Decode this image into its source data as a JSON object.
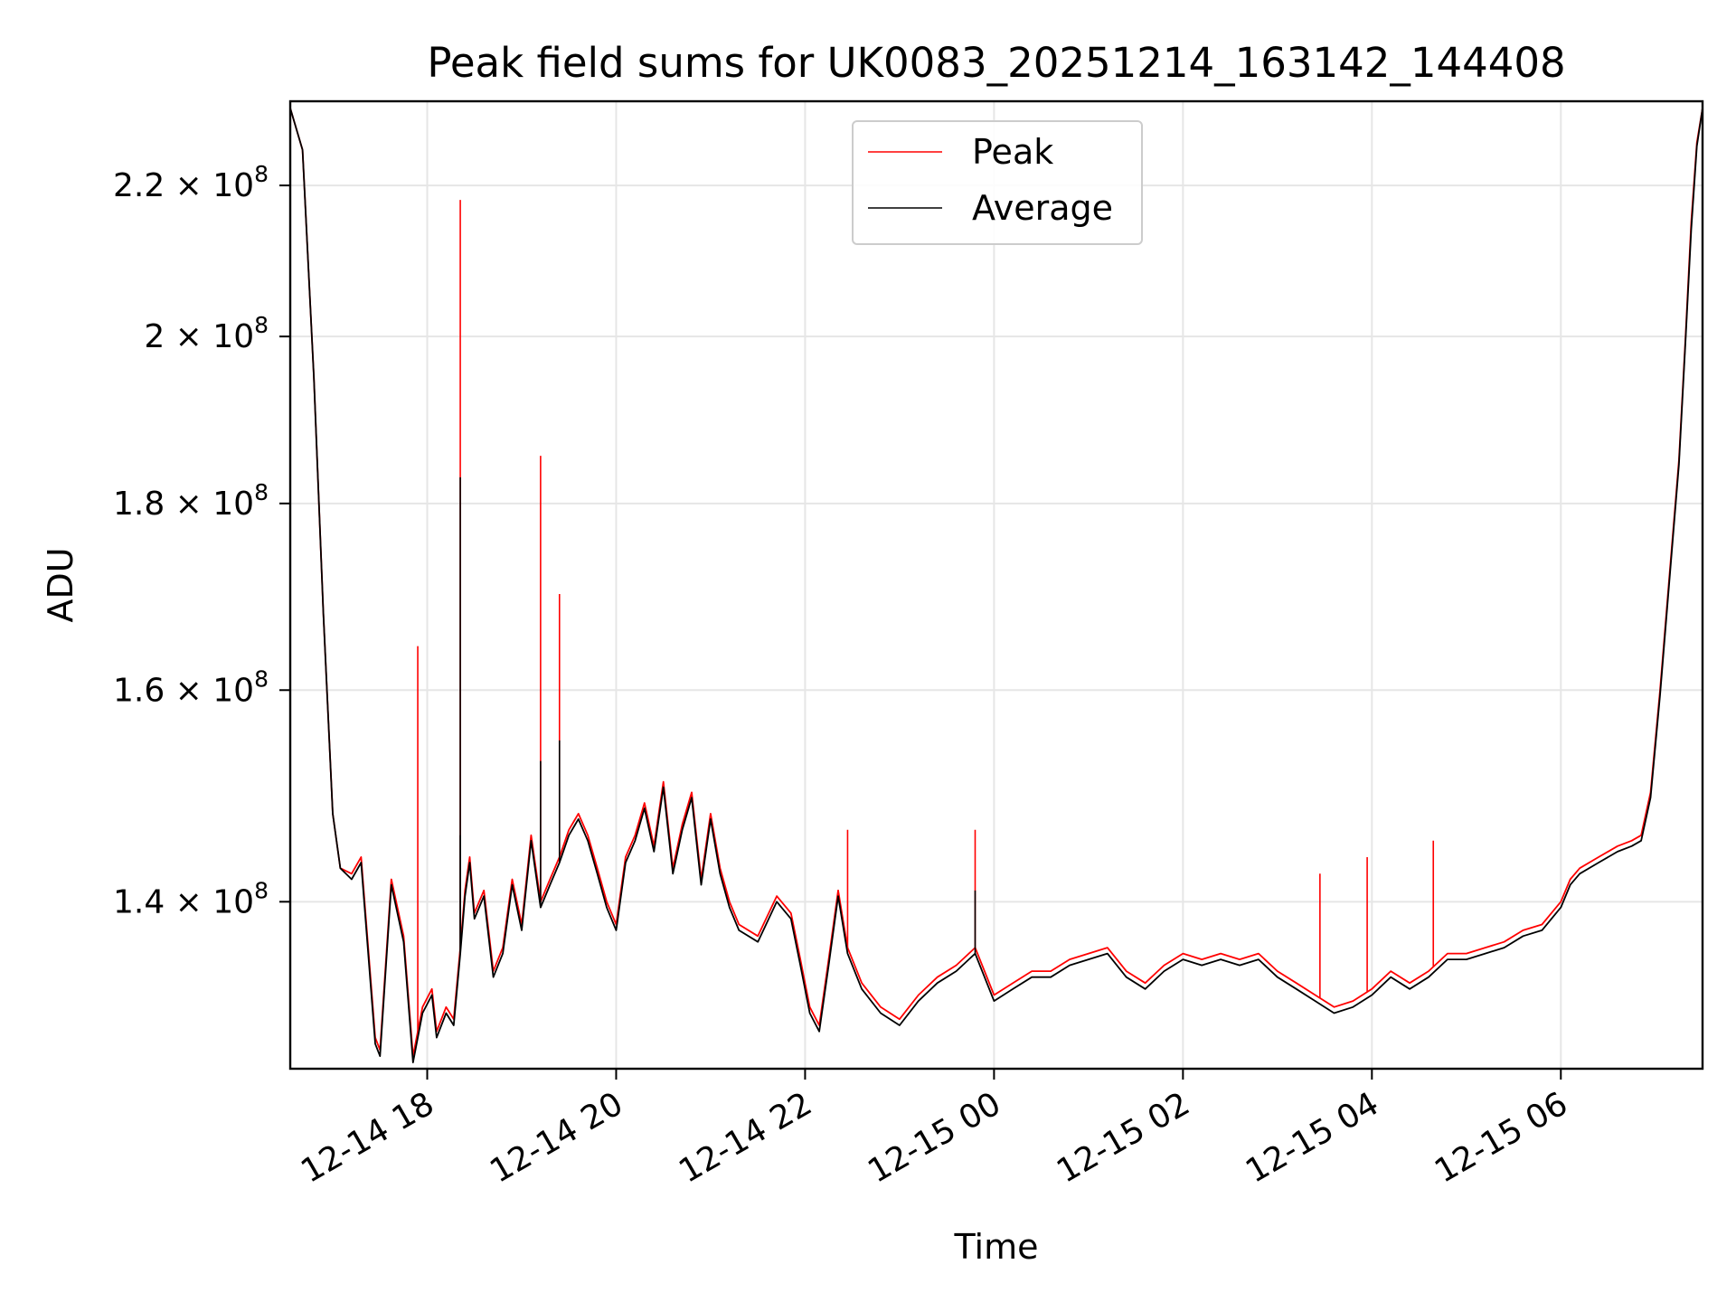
{
  "chart_data": {
    "type": "line",
    "title": "Peak field sums for UK0083_20251214_163142_144408",
    "xlabel": "Time",
    "ylabel": "ADU",
    "yscale": "log",
    "grid": true,
    "legend_position": "upper-center",
    "x_unit": "hours since 12-14 00:00",
    "xlim": [
      16.55,
      31.5
    ],
    "ylim": [
      126000000,
      232000000
    ],
    "x_ticks": [
      {
        "value": 18,
        "label": "12-14 18"
      },
      {
        "value": 20,
        "label": "12-14 20"
      },
      {
        "value": 22,
        "label": "12-14 22"
      },
      {
        "value": 24,
        "label": "12-15 00"
      },
      {
        "value": 26,
        "label": "12-15 02"
      },
      {
        "value": 28,
        "label": "12-15 04"
      },
      {
        "value": 30,
        "label": "12-15 06"
      }
    ],
    "y_ticks": [
      {
        "value": 140000000,
        "mantissa": "1.4",
        "exp": "8"
      },
      {
        "value": 160000000,
        "mantissa": "1.6",
        "exp": "8"
      },
      {
        "value": 180000000,
        "mantissa": "1.8",
        "exp": "8"
      },
      {
        "value": 200000000,
        "mantissa": "2",
        "exp": "8"
      },
      {
        "value": 220000000,
        "mantissa": "2.2",
        "exp": "8"
      }
    ],
    "times_label": "×",
    "tick_base": "10",
    "series": [
      {
        "name": "Peak",
        "color": "#ff0000",
        "points": [
          [
            16.55,
            231000000
          ],
          [
            16.68,
            225000000
          ],
          [
            16.8,
            195000000
          ],
          [
            16.9,
            168000000
          ],
          [
            17.0,
            148000000
          ],
          [
            17.08,
            143000000
          ],
          [
            17.2,
            142500000
          ],
          [
            17.3,
            144000000
          ],
          [
            17.45,
            128500000
          ],
          [
            17.5,
            127500000
          ],
          [
            17.62,
            142000000
          ],
          [
            17.75,
            137000000
          ],
          [
            17.85,
            127000000
          ],
          [
            17.95,
            131000000
          ],
          [
            18.05,
            132500000
          ],
          [
            18.1,
            129000000
          ],
          [
            18.2,
            131000000
          ],
          [
            18.28,
            130000000
          ],
          [
            18.35,
            136000000
          ],
          [
            18.4,
            141000000
          ],
          [
            18.45,
            144000000
          ],
          [
            18.5,
            139000000
          ],
          [
            18.6,
            141000000
          ],
          [
            18.7,
            134000000
          ],
          [
            18.8,
            136000000
          ],
          [
            18.9,
            142000000
          ],
          [
            19.0,
            138000000
          ],
          [
            19.1,
            146000000
          ],
          [
            19.2,
            140000000
          ],
          [
            19.3,
            142000000
          ],
          [
            19.4,
            144000000
          ],
          [
            19.5,
            146500000
          ],
          [
            19.6,
            148000000
          ],
          [
            19.7,
            146000000
          ],
          [
            19.8,
            143000000
          ],
          [
            19.9,
            140000000
          ],
          [
            20.0,
            138000000
          ],
          [
            20.1,
            144000000
          ],
          [
            20.2,
            146000000
          ],
          [
            20.3,
            149000000
          ],
          [
            20.4,
            145000000
          ],
          [
            20.5,
            151000000
          ],
          [
            20.6,
            143000000
          ],
          [
            20.7,
            147000000
          ],
          [
            20.8,
            150000000
          ],
          [
            20.9,
            142000000
          ],
          [
            21.0,
            148000000
          ],
          [
            21.1,
            143000000
          ],
          [
            21.2,
            140000000
          ],
          [
            21.3,
            138000000
          ],
          [
            21.5,
            137000000
          ],
          [
            21.7,
            140500000
          ],
          [
            21.85,
            139000000
          ],
          [
            21.95,
            135000000
          ],
          [
            22.05,
            131000000
          ],
          [
            22.15,
            129500000
          ],
          [
            22.25,
            135000000
          ],
          [
            22.35,
            141000000
          ],
          [
            22.45,
            136000000
          ],
          [
            22.6,
            133000000
          ],
          [
            22.8,
            131000000
          ],
          [
            23.0,
            130000000
          ],
          [
            23.2,
            132000000
          ],
          [
            23.4,
            133500000
          ],
          [
            23.6,
            134500000
          ],
          [
            23.8,
            136000000
          ],
          [
            24.0,
            132000000
          ],
          [
            24.2,
            133000000
          ],
          [
            24.4,
            134000000
          ],
          [
            24.6,
            134000000
          ],
          [
            24.8,
            135000000
          ],
          [
            25.0,
            135500000
          ],
          [
            25.2,
            136000000
          ],
          [
            25.4,
            134000000
          ],
          [
            25.6,
            133000000
          ],
          [
            25.8,
            134500000
          ],
          [
            26.0,
            135500000
          ],
          [
            26.2,
            135000000
          ],
          [
            26.4,
            135500000
          ],
          [
            26.6,
            135000000
          ],
          [
            26.8,
            135500000
          ],
          [
            27.0,
            134000000
          ],
          [
            27.2,
            133000000
          ],
          [
            27.4,
            132000000
          ],
          [
            27.6,
            131000000
          ],
          [
            27.8,
            131500000
          ],
          [
            28.0,
            132500000
          ],
          [
            28.2,
            134000000
          ],
          [
            28.4,
            133000000
          ],
          [
            28.6,
            134000000
          ],
          [
            28.8,
            135500000
          ],
          [
            29.0,
            135500000
          ],
          [
            29.2,
            136000000
          ],
          [
            29.4,
            136500000
          ],
          [
            29.6,
            137500000
          ],
          [
            29.8,
            138000000
          ],
          [
            30.0,
            140000000
          ],
          [
            30.1,
            142000000
          ],
          [
            30.2,
            143000000
          ],
          [
            30.4,
            144000000
          ],
          [
            30.6,
            145000000
          ],
          [
            30.75,
            145500000
          ],
          [
            30.85,
            146000000
          ],
          [
            30.95,
            150000000
          ],
          [
            31.05,
            160000000
          ],
          [
            31.15,
            172000000
          ],
          [
            31.25,
            185000000
          ],
          [
            31.32,
            200000000
          ],
          [
            31.38,
            215000000
          ],
          [
            31.44,
            226000000
          ],
          [
            31.5,
            231000000
          ]
        ],
        "spikes": [
          [
            17.9,
            164500000
          ],
          [
            18.35,
            218000000
          ],
          [
            19.2,
            185500000
          ],
          [
            19.4,
            170000000
          ],
          [
            22.45,
            146500000
          ],
          [
            23.8,
            146500000
          ],
          [
            27.45,
            142500000
          ],
          [
            27.95,
            144000000
          ],
          [
            28.65,
            145500000
          ]
        ]
      },
      {
        "name": "Average",
        "color": "#000000",
        "points": [
          [
            16.55,
            231000000
          ],
          [
            16.68,
            225000000
          ],
          [
            16.8,
            195000000
          ],
          [
            16.9,
            168000000
          ],
          [
            17.0,
            148000000
          ],
          [
            17.08,
            143000000
          ],
          [
            17.2,
            142000000
          ],
          [
            17.3,
            143500000
          ],
          [
            17.45,
            128000000
          ],
          [
            17.5,
            127000000
          ],
          [
            17.62,
            141500000
          ],
          [
            17.75,
            136500000
          ],
          [
            17.85,
            126500000
          ],
          [
            17.95,
            130500000
          ],
          [
            18.05,
            132000000
          ],
          [
            18.1,
            128500000
          ],
          [
            18.2,
            130500000
          ],
          [
            18.28,
            129500000
          ],
          [
            18.35,
            135500000
          ],
          [
            18.4,
            140500000
          ],
          [
            18.45,
            143500000
          ],
          [
            18.5,
            138500000
          ],
          [
            18.6,
            140500000
          ],
          [
            18.7,
            133500000
          ],
          [
            18.8,
            135500000
          ],
          [
            18.9,
            141500000
          ],
          [
            19.0,
            137500000
          ],
          [
            19.1,
            145500000
          ],
          [
            19.2,
            139500000
          ],
          [
            19.3,
            141500000
          ],
          [
            19.4,
            143500000
          ],
          [
            19.5,
            146000000
          ],
          [
            19.6,
            147500000
          ],
          [
            19.7,
            145500000
          ],
          [
            19.8,
            142500000
          ],
          [
            19.9,
            139500000
          ],
          [
            20.0,
            137500000
          ],
          [
            20.1,
            143500000
          ],
          [
            20.2,
            145500000
          ],
          [
            20.3,
            148500000
          ],
          [
            20.4,
            144500000
          ],
          [
            20.5,
            150500000
          ],
          [
            20.6,
            142500000
          ],
          [
            20.7,
            146500000
          ],
          [
            20.8,
            149500000
          ],
          [
            20.9,
            141500000
          ],
          [
            21.0,
            147500000
          ],
          [
            21.1,
            142500000
          ],
          [
            21.2,
            139500000
          ],
          [
            21.3,
            137500000
          ],
          [
            21.5,
            136500000
          ],
          [
            21.7,
            140000000
          ],
          [
            21.85,
            138500000
          ],
          [
            21.95,
            134500000
          ],
          [
            22.05,
            130500000
          ],
          [
            22.15,
            129000000
          ],
          [
            22.25,
            134500000
          ],
          [
            22.35,
            140500000
          ],
          [
            22.45,
            135500000
          ],
          [
            22.6,
            132500000
          ],
          [
            22.8,
            130500000
          ],
          [
            23.0,
            129500000
          ],
          [
            23.2,
            131500000
          ],
          [
            23.4,
            133000000
          ],
          [
            23.6,
            134000000
          ],
          [
            23.8,
            135500000
          ],
          [
            24.0,
            131500000
          ],
          [
            24.2,
            132500000
          ],
          [
            24.4,
            133500000
          ],
          [
            24.6,
            133500000
          ],
          [
            24.8,
            134500000
          ],
          [
            25.0,
            135000000
          ],
          [
            25.2,
            135500000
          ],
          [
            25.4,
            133500000
          ],
          [
            25.6,
            132500000
          ],
          [
            25.8,
            134000000
          ],
          [
            26.0,
            135000000
          ],
          [
            26.2,
            134500000
          ],
          [
            26.4,
            135000000
          ],
          [
            26.6,
            134500000
          ],
          [
            26.8,
            135000000
          ],
          [
            27.0,
            133500000
          ],
          [
            27.2,
            132500000
          ],
          [
            27.4,
            131500000
          ],
          [
            27.6,
            130500000
          ],
          [
            27.8,
            131000000
          ],
          [
            28.0,
            132000000
          ],
          [
            28.2,
            133500000
          ],
          [
            28.4,
            132500000
          ],
          [
            28.6,
            133500000
          ],
          [
            28.8,
            135000000
          ],
          [
            29.0,
            135000000
          ],
          [
            29.2,
            135500000
          ],
          [
            29.4,
            136000000
          ],
          [
            29.6,
            137000000
          ],
          [
            29.8,
            137500000
          ],
          [
            30.0,
            139500000
          ],
          [
            30.1,
            141500000
          ],
          [
            30.2,
            142500000
          ],
          [
            30.4,
            143500000
          ],
          [
            30.6,
            144500000
          ],
          [
            30.75,
            145000000
          ],
          [
            30.85,
            145500000
          ],
          [
            30.95,
            149500000
          ],
          [
            31.05,
            159500000
          ],
          [
            31.15,
            171500000
          ],
          [
            31.25,
            184500000
          ],
          [
            31.32,
            199500000
          ],
          [
            31.38,
            214000000
          ],
          [
            31.44,
            225500000
          ],
          [
            31.5,
            231000000
          ]
        ],
        "spikes": [
          [
            18.35,
            183000000
          ],
          [
            19.2,
            153000000
          ],
          [
            19.4,
            155000000
          ],
          [
            23.8,
            141000000
          ],
          [
            18.35,
            146000000
          ]
        ]
      }
    ]
  }
}
